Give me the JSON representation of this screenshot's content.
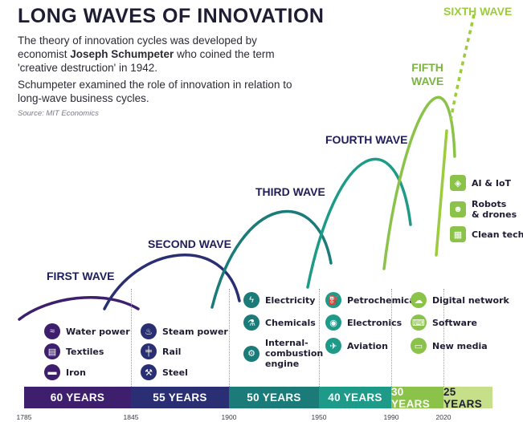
{
  "header": {
    "title": "LONG WAVES OF INNOVATION",
    "p1_pre": "The theory of innovation cycles was developed by economist ",
    "p1_bold": "Joseph Schumpeter",
    "p1_post": " who coined the term 'creative destruction' in 1942.",
    "p2": "Schumpeter examined the role of innovation in relation to long-wave business cycles.",
    "source": "Source: MIT Economics"
  },
  "colors": {
    "wave1": "#3d1f6e",
    "wave2": "#2a2f73",
    "wave3": "#1a7b78",
    "wave4": "#1e9a88",
    "wave5": "#8bc34a",
    "wave6": "#9ccc3e"
  },
  "chart_data": {
    "type": "line",
    "title": "LONG WAVES OF INNOVATION",
    "x_ticks": [
      1785,
      1845,
      1900,
      1950,
      1990,
      2020
    ],
    "waves": [
      {
        "name": "FIRST WAVE",
        "start": 1785,
        "end": 1845,
        "duration_label": "60 YEARS",
        "color": "#3d1f6e",
        "innovations": [
          {
            "label": "Water power",
            "icon": "water-icon"
          },
          {
            "label": "Textiles",
            "icon": "fabric-icon"
          },
          {
            "label": "Iron",
            "icon": "iron-icon"
          }
        ]
      },
      {
        "name": "SECOND WAVE",
        "start": 1845,
        "end": 1900,
        "duration_label": "55 YEARS",
        "color": "#2a2f73",
        "innovations": [
          {
            "label": "Steam power",
            "icon": "steam-icon"
          },
          {
            "label": "Rail",
            "icon": "rail-icon"
          },
          {
            "label": "Steel",
            "icon": "steel-icon"
          }
        ]
      },
      {
        "name": "THIRD WAVE",
        "start": 1900,
        "end": 1950,
        "duration_label": "50 YEARS",
        "color": "#1a7b78",
        "innovations": [
          {
            "label": "Electricity",
            "icon": "electricity-icon"
          },
          {
            "label": "Chemicals",
            "icon": "chemicals-icon"
          },
          {
            "label": "Internal-\ncombustion\nengine",
            "icon": "engine-icon"
          }
        ]
      },
      {
        "name": "FOURTH WAVE",
        "start": 1950,
        "end": 1990,
        "duration_label": "40 YEARS",
        "color": "#1e9a88",
        "innovations": [
          {
            "label": "Petrochemicals",
            "icon": "petrochemicals-icon"
          },
          {
            "label": "Electronics",
            "icon": "electronics-icon"
          },
          {
            "label": "Aviation",
            "icon": "aviation-icon"
          }
        ]
      },
      {
        "name": "FIFTH\nWAVE",
        "start": 1990,
        "end": 2020,
        "duration_label": "30 YEARS",
        "color": "#8bc34a",
        "innovations": [
          {
            "label": "Digital network",
            "icon": "network-icon"
          },
          {
            "label": "Software",
            "icon": "software-icon"
          },
          {
            "label": "New media",
            "icon": "media-icon"
          }
        ]
      },
      {
        "name": "SIXTH WAVE",
        "start": 2020,
        "end": 2045,
        "duration_label": "25 YEARS",
        "color": "#9ccc3e",
        "innovations": [
          {
            "label": "AI & IoT",
            "icon": "ai-icon"
          },
          {
            "label": "Robots\n& drones",
            "icon": "robot-icon"
          },
          {
            "label": "Clean tech",
            "icon": "solar-icon"
          }
        ]
      }
    ]
  }
}
